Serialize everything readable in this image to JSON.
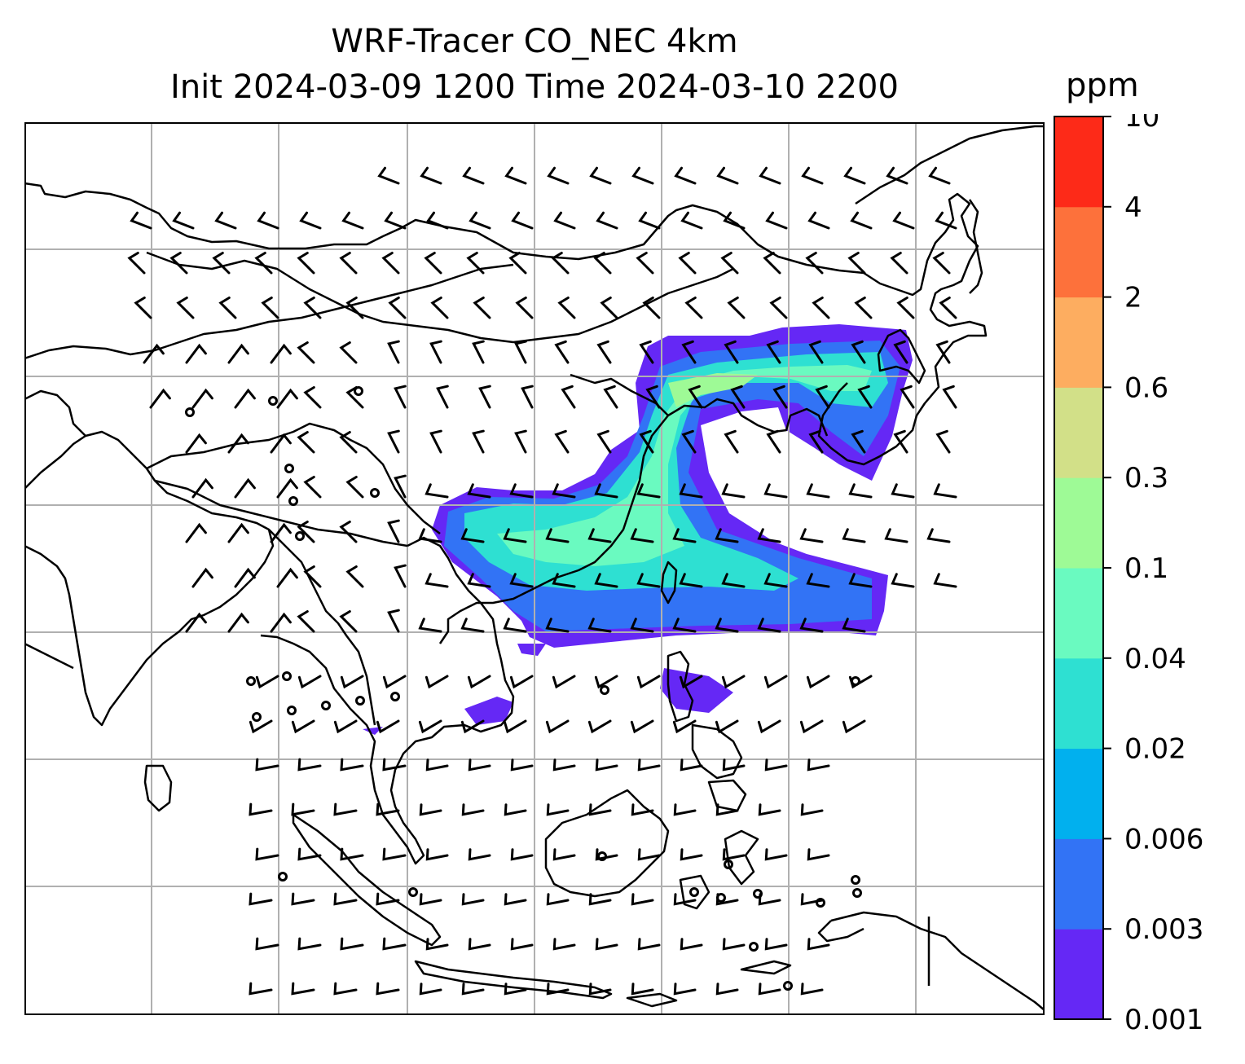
{
  "title_line1": "WRF-Tracer CO_NEC 4km",
  "title_line2": "Init 2024-03-09 1200 Time 2024-03-10 2200",
  "colorbar": {
    "unit": "ppm",
    "ticks": [
      "0.001",
      "0.003",
      "0.006",
      "0.02",
      "0.04",
      "0.1",
      "0.3",
      "0.6",
      "2",
      "4",
      "10"
    ],
    "colors": [
      "#6528f5",
      "#3273f5",
      "#01b0ee",
      "#2ee0d2",
      "#6afac0",
      "#9efa96",
      "#d2e088",
      "#fdad60",
      "#fd713b",
      "#fd2a18"
    ]
  },
  "map": {
    "gridlines": true,
    "coastline_color": "#000000",
    "barb_color": "#000000",
    "plume_colors": [
      "#6528f5",
      "#3273f5",
      "#2ee0d2",
      "#6afac0",
      "#9efa96"
    ]
  }
}
